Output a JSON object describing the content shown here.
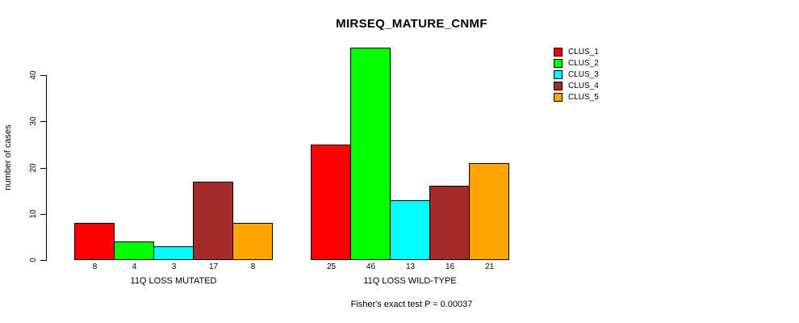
{
  "colors": {
    "background": "#FFFFFF",
    "axis": "#000000",
    "text": "#000000",
    "bar_border": "#000000"
  },
  "chart_data": {
    "type": "bar",
    "title": "MIRSEQ_MATURE_CNMF",
    "ylabel": "number of cases",
    "xlabel": "",
    "yticks": [
      0,
      10,
      20,
      30,
      40
    ],
    "ylim": [
      0,
      46
    ],
    "grid": false,
    "legend_position": "top-right-outside",
    "bar_value_labels_shown": true,
    "series": [
      {
        "name": "CLUS_1",
        "color": "#FF0000"
      },
      {
        "name": "CLUS_2",
        "color": "#00FF00"
      },
      {
        "name": "CLUS_3",
        "color": "#00FFFF"
      },
      {
        "name": "CLUS_4",
        "color": "#A52A2A"
      },
      {
        "name": "CLUS_5",
        "color": "#FFA500"
      }
    ],
    "categories": [
      "11Q LOSS MUTATED",
      "11Q LOSS WILD-TYPE"
    ],
    "groups": [
      {
        "label": "11Q LOSS MUTATED",
        "values": [
          8,
          4,
          3,
          17,
          8
        ]
      },
      {
        "label": "11Q LOSS WILD-TYPE",
        "values": [
          25,
          46,
          13,
          16,
          21
        ]
      }
    ],
    "annotation": "Fisher's exact test P = 0.00037"
  }
}
